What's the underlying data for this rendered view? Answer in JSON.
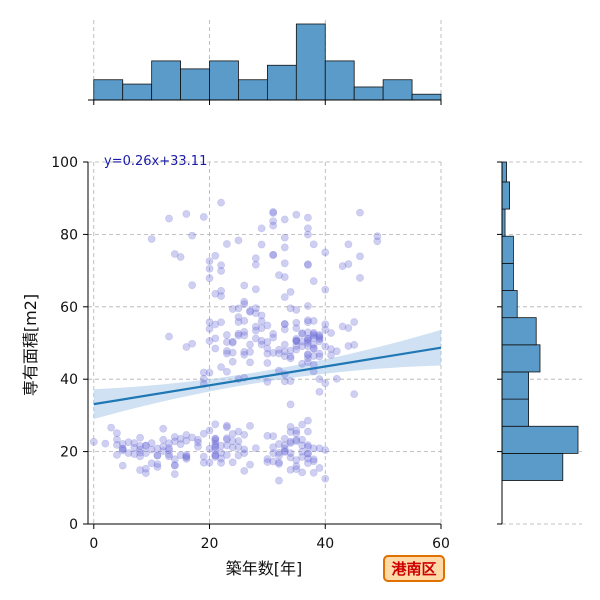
{
  "chart_data": [
    {
      "type": "scatter",
      "panel": "main",
      "xlabel": "築年数[年]",
      "ylabel": "専有面積[m2]",
      "xlim": [
        -1,
        60
      ],
      "ylim": [
        0,
        100
      ],
      "xticks": [
        0,
        20,
        40,
        60
      ],
      "yticks": [
        0,
        20,
        40,
        60,
        80,
        100
      ],
      "grid": true,
      "grid_style": "dashed",
      "point_color": "#6b6bd6",
      "points_note_free": true,
      "regression": {
        "equation": "y=0.26x+33.11",
        "slope": 0.26,
        "intercept": 33.11,
        "x_range": [
          0,
          60
        ],
        "color": "#1f77b4",
        "ci_color": "#a8c8e8",
        "ci_half_width_at_ends": 4.5,
        "ci_half_width_at_mean": 1.5
      },
      "annotation": {
        "text": "港南区",
        "text_color": "#cc0000",
        "background": "#ffd9a8",
        "border": "#e07000",
        "position": "bottom-right"
      },
      "clusters": [
        {
          "x_center": 10,
          "x_spread": 8,
          "y_center": 20,
          "y_spread": 5,
          "count": 60
        },
        {
          "x_center": 22,
          "x_spread": 5,
          "y_center": 22,
          "y_spread": 5,
          "count": 45
        },
        {
          "x_center": 35,
          "x_spread": 5,
          "y_center": 20,
          "y_spread": 6,
          "count": 55
        },
        {
          "x_center": 30,
          "x_spread": 12,
          "y_center": 50,
          "y_spread": 12,
          "count": 110
        },
        {
          "x_center": 37,
          "x_spread": 4,
          "y_center": 50,
          "y_spread": 5,
          "count": 40
        },
        {
          "x_center": 30,
          "x_spread": 18,
          "y_center": 75,
          "y_spread": 12,
          "count": 50
        }
      ]
    },
    {
      "type": "bar",
      "panel": "top-histogram",
      "orientation": "vertical",
      "x_axis": "築年数[年]",
      "bin_edges": [
        0,
        5,
        10,
        15,
        20,
        25,
        30,
        35,
        40,
        45,
        50,
        55,
        60
      ],
      "values": [
        2.8,
        2.2,
        5.4,
        4.3,
        5.4,
        2.8,
        4.8,
        10.5,
        5.4,
        1.8,
        2.8,
        0.8
      ],
      "color": "#5b9bc9",
      "grid": true
    },
    {
      "type": "bar",
      "panel": "right-histogram",
      "orientation": "horizontal",
      "y_axis": "専有面積[m2]",
      "bin_edges": [
        12,
        19.5,
        27,
        34.5,
        42,
        49.5,
        57,
        64.5,
        72,
        79.5,
        87,
        94.5,
        100
      ],
      "values": [
        8,
        10,
        3.5,
        3.5,
        5,
        4.5,
        2,
        1.5,
        1.5,
        0.4,
        1,
        0.6
      ],
      "color": "#5b9bc9",
      "grid": true
    }
  ]
}
